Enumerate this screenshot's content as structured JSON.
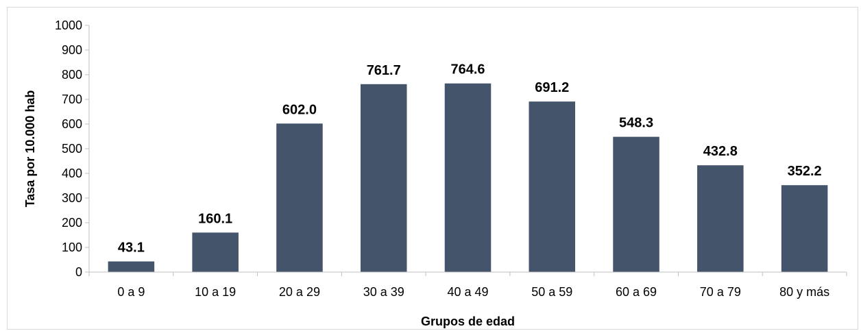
{
  "chart_data": {
    "type": "bar",
    "title": "",
    "xlabel": "Grupos de edad",
    "ylabel": "Tasa por 10.000 hab",
    "categories": [
      "0 a 9",
      "10 a 19",
      "20 a 29",
      "30 a 39",
      "40 a 49",
      "50 a 59",
      "60 a 69",
      "70 a 79",
      "80 y más"
    ],
    "values": [
      43.1,
      160.1,
      602.0,
      761.7,
      764.6,
      691.2,
      548.3,
      432.8,
      352.2
    ],
    "value_labels": [
      "43.1",
      "160.1",
      "602.0",
      "761.7",
      "764.6",
      "691.2",
      "548.3",
      "432.8",
      "352.2"
    ],
    "ylim": [
      0,
      1000
    ],
    "yticks": [
      "0",
      "100",
      "200",
      "300",
      "400",
      "500",
      "600",
      "700",
      "800",
      "900",
      "1000"
    ],
    "bar_color": "#44546a",
    "grid": false,
    "legend": "none"
  }
}
